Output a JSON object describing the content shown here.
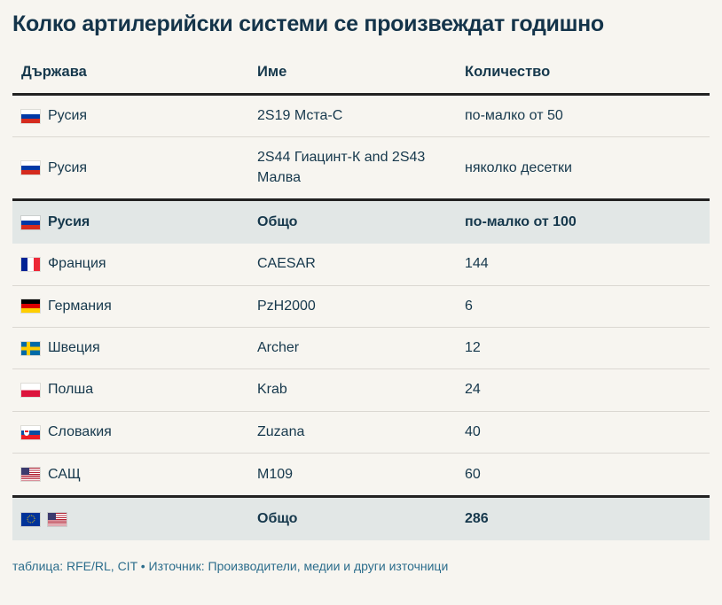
{
  "title": "Колко артилерийски системи се произвеждат годишно",
  "table": {
    "columns": [
      "Държава",
      "Име",
      "Количество"
    ],
    "rows": [
      {
        "type": "normal",
        "flags": [
          "ru"
        ],
        "country": "Русия",
        "name": "2S19 Мста-С",
        "qty": "по-малко от 50"
      },
      {
        "type": "pre-total",
        "flags": [
          "ru"
        ],
        "country": "Русия",
        "name": "2S44 Гиацинт-К and 2S43 Малва",
        "qty": "няколко десетки"
      },
      {
        "type": "total",
        "flags": [
          "ru"
        ],
        "country": "Русия",
        "name": "Общо",
        "qty": "по-малко от 100"
      },
      {
        "type": "normal",
        "flags": [
          "fr"
        ],
        "country": "Франция",
        "name": "CAESAR",
        "qty": "144"
      },
      {
        "type": "normal",
        "flags": [
          "de"
        ],
        "country": "Германия",
        "name": "PzH2000",
        "qty": "6"
      },
      {
        "type": "normal",
        "flags": [
          "se"
        ],
        "country": "Швеция",
        "name": "Archer",
        "qty": "12"
      },
      {
        "type": "normal",
        "flags": [
          "pl"
        ],
        "country": "Полша",
        "name": "Krab",
        "qty": "24"
      },
      {
        "type": "normal",
        "flags": [
          "sk"
        ],
        "country": "Словакия",
        "name": "Zuzana",
        "qty": "40"
      },
      {
        "type": "pre-total",
        "flags": [
          "us"
        ],
        "country": "САЩ",
        "name": "M109",
        "qty": "60"
      },
      {
        "type": "total",
        "flags": [
          "eu",
          "us"
        ],
        "country": "",
        "name": "Общо",
        "qty": "286"
      }
    ],
    "flag_names": {
      "ru": "russia-flag-icon",
      "fr": "france-flag-icon",
      "de": "germany-flag-icon",
      "se": "sweden-flag-icon",
      "pl": "poland-flag-icon",
      "sk": "slovakia-flag-icon",
      "us": "usa-flag-icon",
      "eu": "eu-flag-icon"
    }
  },
  "footer": "таблица: RFE/RL, CIT  • Източник: Производители, медии и други източници",
  "colors": {
    "background": "#f7f5f0",
    "text": "#16384c",
    "heavy_rule": "#222222",
    "light_rule": "#dbd8d2",
    "total_row_background": "#e2e7e6",
    "footer_text": "#2c6d8c"
  }
}
